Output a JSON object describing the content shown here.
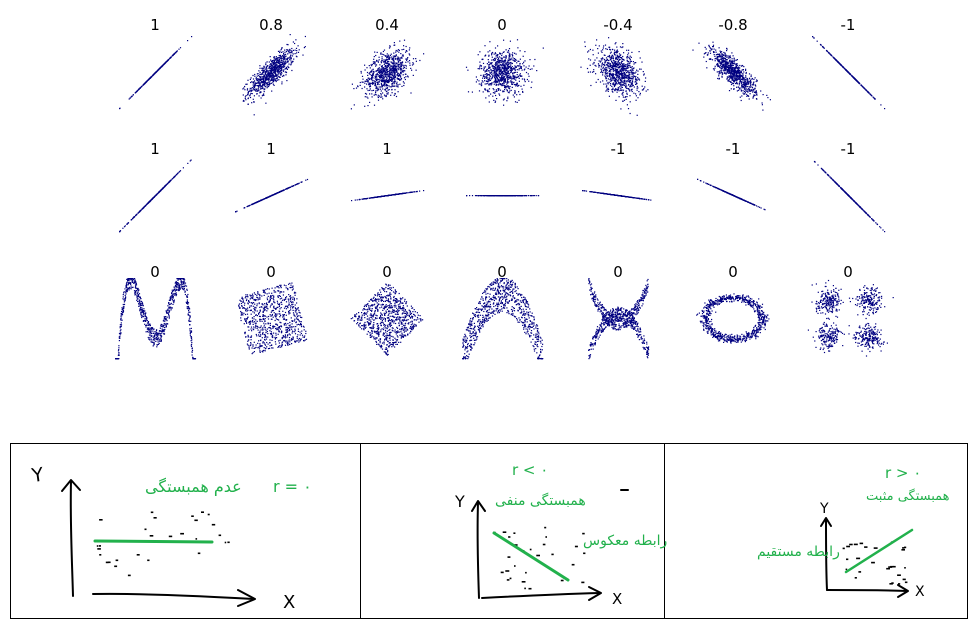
{
  "chart_data": [
    {
      "type": "scatter",
      "row": 1,
      "panels": [
        {
          "label": "1",
          "r": 1,
          "shape": "line"
        },
        {
          "label": "0.8",
          "r": 0.8,
          "shape": "gaussian"
        },
        {
          "label": "0.4",
          "r": 0.4,
          "shape": "gaussian"
        },
        {
          "label": "0",
          "r": 0,
          "shape": "gaussian"
        },
        {
          "label": "-0.4",
          "r": -0.4,
          "shape": "gaussian"
        },
        {
          "label": "-0.8",
          "r": -0.8,
          "shape": "gaussian"
        },
        {
          "label": "-1",
          "r": -1,
          "shape": "line"
        }
      ]
    },
    {
      "type": "scatter",
      "row": 2,
      "panels": [
        {
          "label": "1",
          "r": 1,
          "shape": "line",
          "slope": 1
        },
        {
          "label": "1",
          "r": 1,
          "shape": "line",
          "slope": 0.45
        },
        {
          "label": "1",
          "r": 1,
          "shape": "line",
          "slope": 0.14
        },
        {
          "label": "",
          "r": null,
          "shape": "line",
          "slope": 0
        },
        {
          "label": "-1",
          "r": -1,
          "shape": "line",
          "slope": -0.14
        },
        {
          "label": "-1",
          "r": -1,
          "shape": "line",
          "slope": -0.45
        },
        {
          "label": "-1",
          "r": -1,
          "shape": "line",
          "slope": -1
        }
      ]
    },
    {
      "type": "scatter",
      "row": 3,
      "panels": [
        {
          "label": "0",
          "r": 0,
          "shape": "wave"
        },
        {
          "label": "0",
          "r": 0,
          "shape": "rotated-square"
        },
        {
          "label": "0",
          "r": 0,
          "shape": "diamond"
        },
        {
          "label": "0",
          "r": 0,
          "shape": "parabola"
        },
        {
          "label": "0",
          "r": 0,
          "shape": "x-cross"
        },
        {
          "label": "0",
          "r": 0,
          "shape": "ring"
        },
        {
          "label": "0",
          "r": 0,
          "shape": "four-clusters"
        }
      ]
    }
  ],
  "sketches": [
    {
      "x_label": "X",
      "y_label": "Y",
      "note_1": "عدم همبستگی",
      "note_2": "r = ۰",
      "trend": "flat"
    },
    {
      "x_label": "X",
      "y_label": "Y",
      "note_1": "r < ۰",
      "note_2": "همبستگی منفی",
      "note_3": "رابطه معکوس",
      "trend": "negative"
    },
    {
      "x_label": "X",
      "y_label": "Y",
      "note_1": "r > ۰",
      "note_2": "همبستگی مثبت",
      "note_3": "رابطه مستقیم",
      "trend": "positive"
    }
  ],
  "colors": {
    "points": "#000080",
    "ink": "#000000",
    "green_ink": "#22b14c",
    "frame": "#000000"
  }
}
